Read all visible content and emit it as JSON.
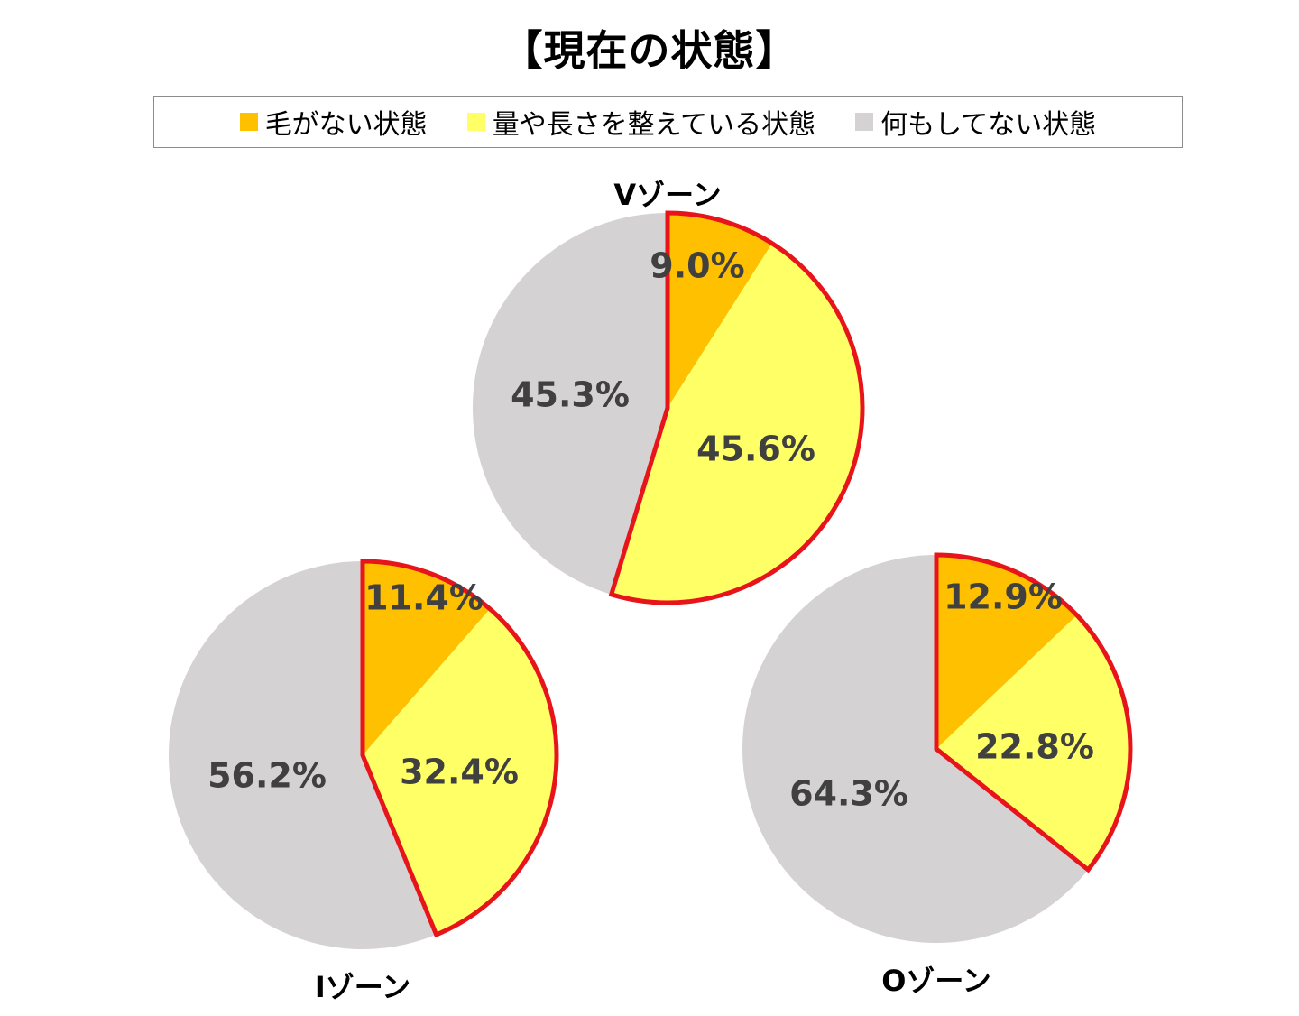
{
  "title": "【現在の状態】",
  "legend": {
    "placement": "top",
    "items": [
      {
        "label": "毛がない状態",
        "color": "#FFC000"
      },
      {
        "label": "量や長さを整えている状態",
        "color": "#FFFF66"
      },
      {
        "label": "何もしてない状態",
        "color": "#D5D2D3"
      }
    ]
  },
  "highlight_color": "#E8141B",
  "chart_data": [
    {
      "type": "pie",
      "title": "Vゾーン",
      "categories": [
        "毛がない状態",
        "量や長さを整えている状態",
        "何もしてない状態"
      ],
      "values": [
        9.0,
        45.6,
        45.3
      ],
      "labels": [
        "9.0%",
        "45.6%",
        "45.3%"
      ],
      "colors": [
        "#FFC000",
        "#FFFF66",
        "#D5D2D3"
      ],
      "highlighted": [
        0,
        1
      ]
    },
    {
      "type": "pie",
      "title": "Iゾーン",
      "categories": [
        "毛がない状態",
        "量や長さを整えている状態",
        "何もしてない状態"
      ],
      "values": [
        11.4,
        32.4,
        56.2
      ],
      "labels": [
        "11.4%",
        "32.4%",
        "56.2%"
      ],
      "colors": [
        "#FFC000",
        "#FFFF66",
        "#D5D2D3"
      ],
      "highlighted": [
        0,
        1
      ]
    },
    {
      "type": "pie",
      "title": "Oゾーン",
      "categories": [
        "毛がない状態",
        "量や長さを整えている状態",
        "何もしてない状態"
      ],
      "values": [
        12.9,
        22.8,
        64.3
      ],
      "labels": [
        "12.9%",
        "22.8%",
        "64.3%"
      ],
      "colors": [
        "#FFC000",
        "#FFFF66",
        "#D5D2D3"
      ],
      "highlighted": [
        0,
        1
      ]
    }
  ]
}
